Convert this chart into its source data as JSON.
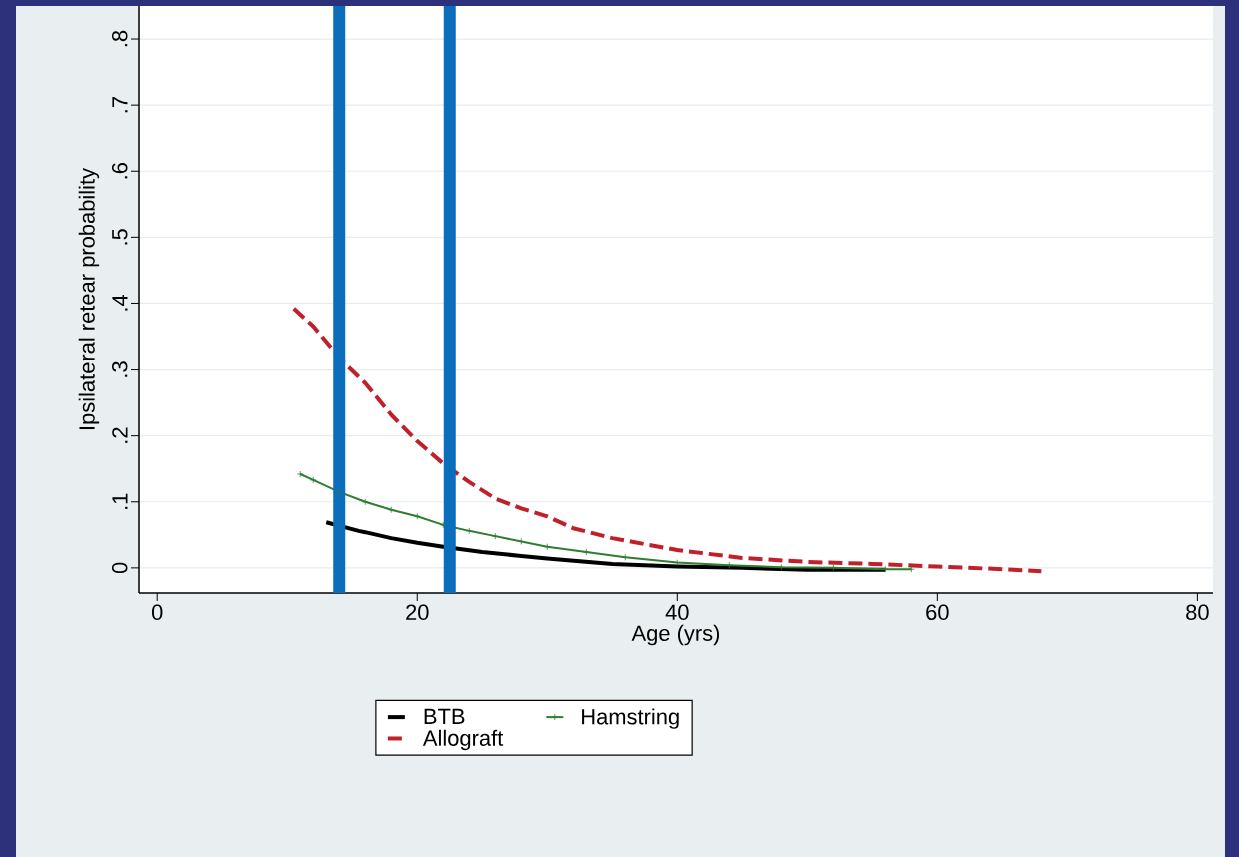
{
  "chart_data": {
    "type": "line",
    "xlabel": "Age (yrs)",
    "ylabel": "Ipsilateral retear probability",
    "xlim": [
      -1.4,
      81.2
    ],
    "xticks": [
      0,
      20,
      40,
      60,
      80
    ],
    "ylim": [
      -0.038,
      0.85
    ],
    "yticks": [
      {
        "value": 0,
        "label": "0"
      },
      {
        "value": 0.1,
        "label": ".1"
      },
      {
        "value": 0.2,
        "label": ".2"
      },
      {
        "value": 0.3,
        "label": ".3"
      },
      {
        "value": 0.4,
        "label": ".4"
      },
      {
        "value": 0.5,
        "label": ".5"
      },
      {
        "value": 0.6,
        "label": ".6"
      },
      {
        "value": 0.7,
        "label": ".7"
      },
      {
        "value": 0.8,
        "label": ".8"
      }
    ],
    "grid": "y",
    "legend": "bottom",
    "series": [
      {
        "name": "BTB",
        "color": "#000000",
        "line_style": "solid",
        "x": [
          13,
          15.5,
          16,
          18,
          20,
          22,
          25,
          28,
          30,
          35,
          40,
          45,
          50,
          56
        ],
        "values": [
          0.069,
          0.056,
          0.054,
          0.045,
          0.038,
          0.032,
          0.024,
          0.018,
          0.014,
          0.006,
          0.002,
          0,
          -0.003,
          -0.003
        ]
      },
      {
        "name": "Hamstring",
        "color": "#2e7d32",
        "line_style": "solid",
        "marker": "cross",
        "x": [
          11,
          12,
          14,
          16,
          18,
          20,
          22,
          24,
          26,
          28,
          30,
          33,
          36,
          40,
          44,
          48,
          52,
          56,
          58
        ],
        "values": [
          0.142,
          0.133,
          0.115,
          0.1,
          0.088,
          0.078,
          0.065,
          0.056,
          0.048,
          0.04,
          0.032,
          0.024,
          0.016,
          0.008,
          0.004,
          0.001,
          0,
          -0.002,
          -0.002
        ]
      },
      {
        "name": "Allograft",
        "color": "#c0202a",
        "line_style": "dashed",
        "x": [
          10.5,
          12,
          14,
          16,
          18,
          20,
          22,
          24,
          26,
          28,
          30,
          32,
          35,
          40,
          45,
          50,
          55,
          60,
          65,
          68
        ],
        "values": [
          0.392,
          0.365,
          0.318,
          0.28,
          0.232,
          0.192,
          0.158,
          0.13,
          0.105,
          0.09,
          0.078,
          0.06,
          0.045,
          0.027,
          0.015,
          0.009,
          0.006,
          0.002,
          -0.002,
          -0.005
        ]
      }
    ],
    "ref_lines": [
      {
        "axis": "x",
        "value": 14,
        "color": "#0a6ebd"
      },
      {
        "axis": "x",
        "value": 22.5,
        "color": "#0a6ebd"
      }
    ]
  }
}
